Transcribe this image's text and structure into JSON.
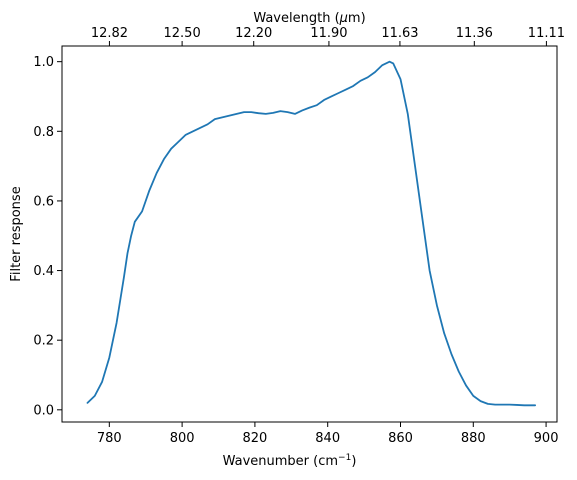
{
  "chart_data": {
    "type": "line",
    "title": "",
    "xlabel": "Wavenumber (cm",
    "xlabel_superscript": "−1",
    "xlabel_suffix": ")",
    "ylabel": "Filter response",
    "top_xlabel_prefix": "Wavelength (",
    "top_xlabel_mu": "μ",
    "top_xlabel_suffix": "m)",
    "xlim": [
      767,
      903
    ],
    "ylim": [
      -0.035,
      1.045
    ],
    "x_ticks": [
      780,
      800,
      820,
      840,
      860,
      880,
      900
    ],
    "y_ticks": [
      0.0,
      0.2,
      0.4,
      0.6,
      0.8,
      1.0
    ],
    "y_tick_labels": [
      "0.0",
      "0.2",
      "0.4",
      "0.6",
      "0.8",
      "1.0"
    ],
    "top_ticks_labels": [
      "12.82",
      "12.50",
      "12.20",
      "11.90",
      "11.63",
      "11.36",
      "11.11"
    ],
    "grid": false,
    "color": "#1f77b4",
    "series": [
      {
        "x": [
          774,
          776,
          778,
          780,
          782,
          784,
          785,
          786,
          787,
          789,
          791,
          793,
          795,
          797,
          799,
          801,
          803,
          805,
          807,
          809,
          811,
          813,
          815,
          817,
          819,
          821,
          823,
          825,
          827,
          829,
          831,
          833,
          835,
          837,
          839,
          841,
          843,
          845,
          847,
          849,
          851,
          853,
          855,
          857,
          858,
          860,
          862,
          864,
          866,
          868,
          870,
          872,
          874,
          876,
          878,
          880,
          882,
          884,
          886,
          888,
          890,
          892,
          894,
          896,
          897
        ],
        "y": [
          0.02,
          0.04,
          0.08,
          0.15,
          0.25,
          0.38,
          0.45,
          0.5,
          0.54,
          0.57,
          0.63,
          0.68,
          0.72,
          0.75,
          0.77,
          0.79,
          0.8,
          0.81,
          0.82,
          0.835,
          0.84,
          0.845,
          0.85,
          0.855,
          0.855,
          0.852,
          0.85,
          0.853,
          0.858,
          0.855,
          0.85,
          0.86,
          0.868,
          0.875,
          0.89,
          0.9,
          0.91,
          0.92,
          0.93,
          0.945,
          0.955,
          0.97,
          0.99,
          1.0,
          0.995,
          0.95,
          0.85,
          0.7,
          0.55,
          0.4,
          0.3,
          0.22,
          0.16,
          0.11,
          0.07,
          0.04,
          0.025,
          0.017,
          0.015,
          0.015,
          0.015,
          0.014,
          0.013,
          0.013,
          0.013
        ]
      }
    ]
  }
}
